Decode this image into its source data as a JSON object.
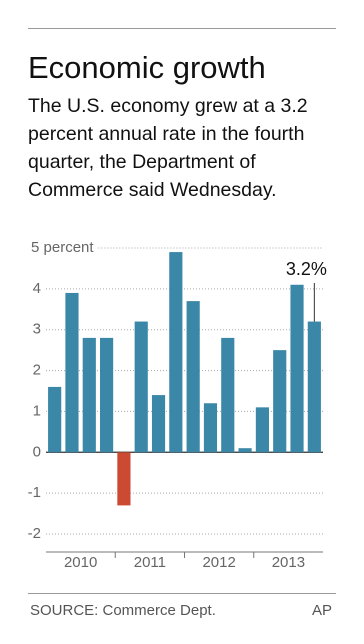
{
  "chart_data": {
    "type": "bar",
    "title": "Economic growth",
    "subtitle": "The U.S. economy grew at a 3.2 percent annual rate in the fourth quarter, the Department of Commerce said Wednesday.",
    "groups": [
      "2010",
      "2011",
      "2012",
      "2013"
    ],
    "values": [
      1.6,
      3.9,
      2.8,
      2.8,
      -1.3,
      3.2,
      1.4,
      4.9,
      3.7,
      1.2,
      2.8,
      0.1,
      1.1,
      2.5,
      4.1,
      3.2
    ],
    "value_labels": [
      null,
      null,
      null,
      null,
      null,
      null,
      null,
      null,
      null,
      null,
      null,
      null,
      null,
      null,
      null,
      "3.2%"
    ],
    "color": "#3a87a8",
    "negative_color": "#cc4a32",
    "ylim": [
      -2,
      5
    ],
    "yticks": [
      -2,
      -1,
      0,
      1,
      2,
      3,
      4,
      {
        "value": 5,
        "label": "5 percent"
      }
    ],
    "grid": true,
    "source": "SOURCE: Commerce Dept.",
    "credit": "AP"
  }
}
